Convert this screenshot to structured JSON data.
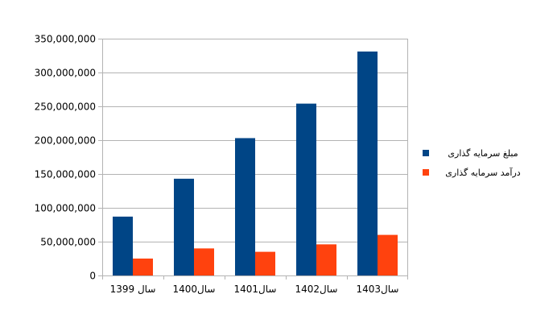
{
  "chart_data": {
    "type": "bar",
    "categories": [
      "سال 1399",
      "سال1400",
      "سال1401",
      "سال1402",
      "سال1403"
    ],
    "series": [
      {
        "name": "مبلغ سرمایه گذاری",
        "values": [
          87000000,
          143000000,
          203000000,
          254000000,
          331000000
        ],
        "color": "#004586"
      },
      {
        "name": "درآمد سرمایه گذاری",
        "values": [
          25000000,
          40000000,
          35000000,
          46000000,
          60000000
        ],
        "color": "#ff420e"
      }
    ],
    "yticks": [
      {
        "value": 0,
        "label": "0"
      },
      {
        "value": 50000000,
        "label": "50,000,000"
      },
      {
        "value": 100000000,
        "label": "100,000,000"
      },
      {
        "value": 150000000,
        "label": "150,000,000"
      },
      {
        "value": 200000000,
        "label": "200,000,000"
      },
      {
        "value": 250000000,
        "label": "250,000,000"
      },
      {
        "value": 300000000,
        "label": "300,000,000"
      },
      {
        "value": 350000000,
        "label": "350,000,000"
      }
    ],
    "ylim": [
      0,
      350000000
    ],
    "grid": "horizontal",
    "legend_position": "right",
    "gridline_color": "#b3b3b3"
  }
}
